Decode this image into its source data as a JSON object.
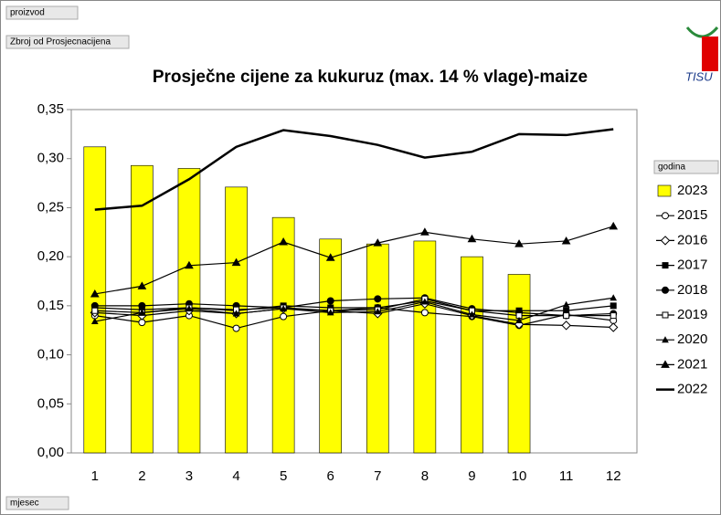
{
  "chart_data": {
    "type": "combo",
    "title": "Prosječne cijene za kukuruz (max. 14 % vlage)-maize",
    "filter_field": "proizvod",
    "value_field": "Zbroj od Prosjecnacijena",
    "legend_title": "godina",
    "axis_field": "mjesec",
    "logo_text": "TISU",
    "categories": [
      "1",
      "2",
      "3",
      "4",
      "5",
      "6",
      "7",
      "8",
      "9",
      "10",
      "11",
      "12"
    ],
    "ylim": [
      0,
      0.35
    ],
    "yticks": [
      {
        "value": 0,
        "label": "0,00"
      },
      {
        "value": 0.05,
        "label": "0,05"
      },
      {
        "value": 0.1,
        "label": "0,10"
      },
      {
        "value": 0.15,
        "label": "0,15"
      },
      {
        "value": 0.2,
        "label": "0,20"
      },
      {
        "value": 0.25,
        "label": "0,25"
      },
      {
        "value": 0.3,
        "label": "0,30"
      },
      {
        "value": 0.35,
        "label": "0,35"
      }
    ],
    "grid": false,
    "legend": "right",
    "series": [
      {
        "name": "2023",
        "type": "bar",
        "color": "#ffff00",
        "values": [
          0.312,
          0.293,
          0.29,
          0.271,
          0.24,
          0.218,
          0.213,
          0.216,
          0.2,
          0.182,
          null,
          null
        ]
      },
      {
        "name": "2015",
        "type": "line",
        "marker": "circle-open",
        "color": "#000000",
        "values": [
          0.14,
          0.133,
          0.14,
          0.127,
          0.139,
          0.145,
          0.148,
          0.143,
          0.139,
          0.13,
          0.141,
          0.135
        ]
      },
      {
        "name": "2016",
        "type": "line",
        "marker": "diamond-open",
        "color": "#000000",
        "values": [
          0.143,
          0.14,
          0.145,
          0.142,
          0.147,
          0.145,
          0.142,
          0.152,
          0.14,
          0.131,
          0.13,
          0.128
        ]
      },
      {
        "name": "2017",
        "type": "line",
        "marker": "square",
        "color": "#000000",
        "values": [
          0.148,
          0.146,
          0.148,
          0.145,
          0.15,
          0.148,
          0.148,
          0.155,
          0.145,
          0.145,
          0.145,
          0.15
        ]
      },
      {
        "name": "2018",
        "type": "line",
        "marker": "circle",
        "color": "#000000",
        "values": [
          0.15,
          0.15,
          0.152,
          0.15,
          0.148,
          0.155,
          0.157,
          0.158,
          0.147,
          0.143,
          0.14,
          0.142
        ]
      },
      {
        "name": "2019",
        "type": "line",
        "marker": "square-open",
        "color": "#000000",
        "values": [
          0.145,
          0.143,
          0.148,
          0.146,
          0.148,
          0.145,
          0.146,
          0.157,
          0.145,
          0.14,
          0.14,
          0.14
        ]
      },
      {
        "name": "2020",
        "type": "line",
        "marker": "triangle-small",
        "color": "#000000",
        "values": [
          0.134,
          0.143,
          0.147,
          0.142,
          0.147,
          0.143,
          0.144,
          0.154,
          0.141,
          0.135,
          0.151,
          0.158
        ]
      },
      {
        "name": "2021",
        "type": "line",
        "marker": "triangle",
        "color": "#000000",
        "values": [
          0.162,
          0.17,
          0.191,
          0.194,
          0.215,
          0.199,
          0.214,
          0.225,
          0.218,
          0.213,
          0.216,
          0.231
        ]
      },
      {
        "name": "2022",
        "type": "line",
        "marker": "none",
        "width": 2.5,
        "color": "#000000",
        "values": [
          0.248,
          0.252,
          0.279,
          0.312,
          0.329,
          0.323,
          0.314,
          0.301,
          0.307,
          0.325,
          0.324,
          0.33
        ]
      }
    ]
  }
}
